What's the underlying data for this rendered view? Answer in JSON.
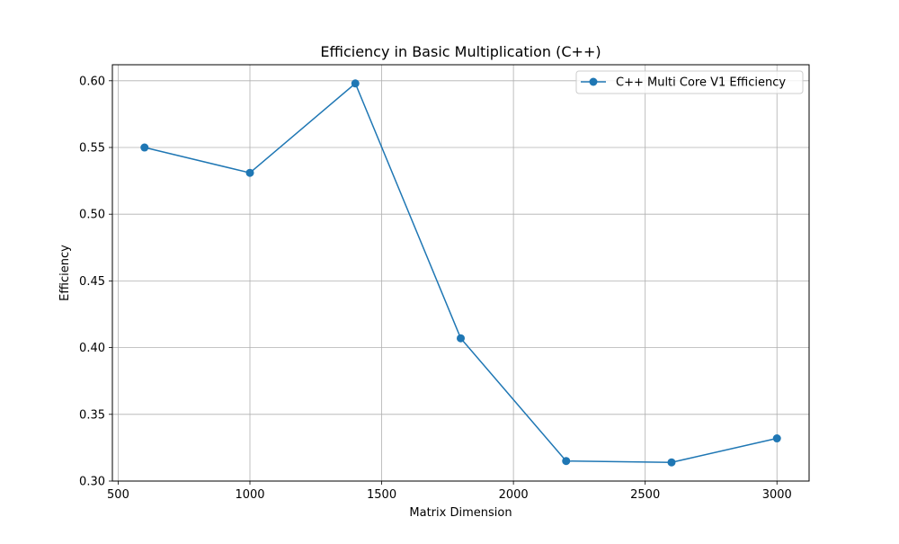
{
  "chart_data": {
    "type": "line",
    "title": "Efficiency in Basic Multiplication (C++)",
    "xlabel": "Matrix Dimension",
    "ylabel": "Efficiency",
    "xlim": [
      478,
      3122
    ],
    "ylim": [
      0.3,
      0.612
    ],
    "x_ticks": [
      500,
      1000,
      1500,
      2000,
      2500,
      3000
    ],
    "y_ticks": [
      0.3,
      0.35,
      0.4,
      0.45,
      0.5,
      0.55,
      0.6
    ],
    "x_tick_labels": [
      "500",
      "1000",
      "1500",
      "2000",
      "2500",
      "3000"
    ],
    "y_tick_labels": [
      "0.30",
      "0.35",
      "0.40",
      "0.45",
      "0.50",
      "0.55",
      "0.60"
    ],
    "grid": true,
    "legend_position": "top-right",
    "series": [
      {
        "name": "C++ Multi Core V1 Efficiency",
        "color": "#1f77b4",
        "marker": "circle",
        "x": [
          600,
          1000,
          1400,
          1800,
          2200,
          2600,
          3000
        ],
        "values": [
          0.55,
          0.531,
          0.598,
          0.407,
          0.315,
          0.314,
          0.332
        ]
      }
    ]
  }
}
